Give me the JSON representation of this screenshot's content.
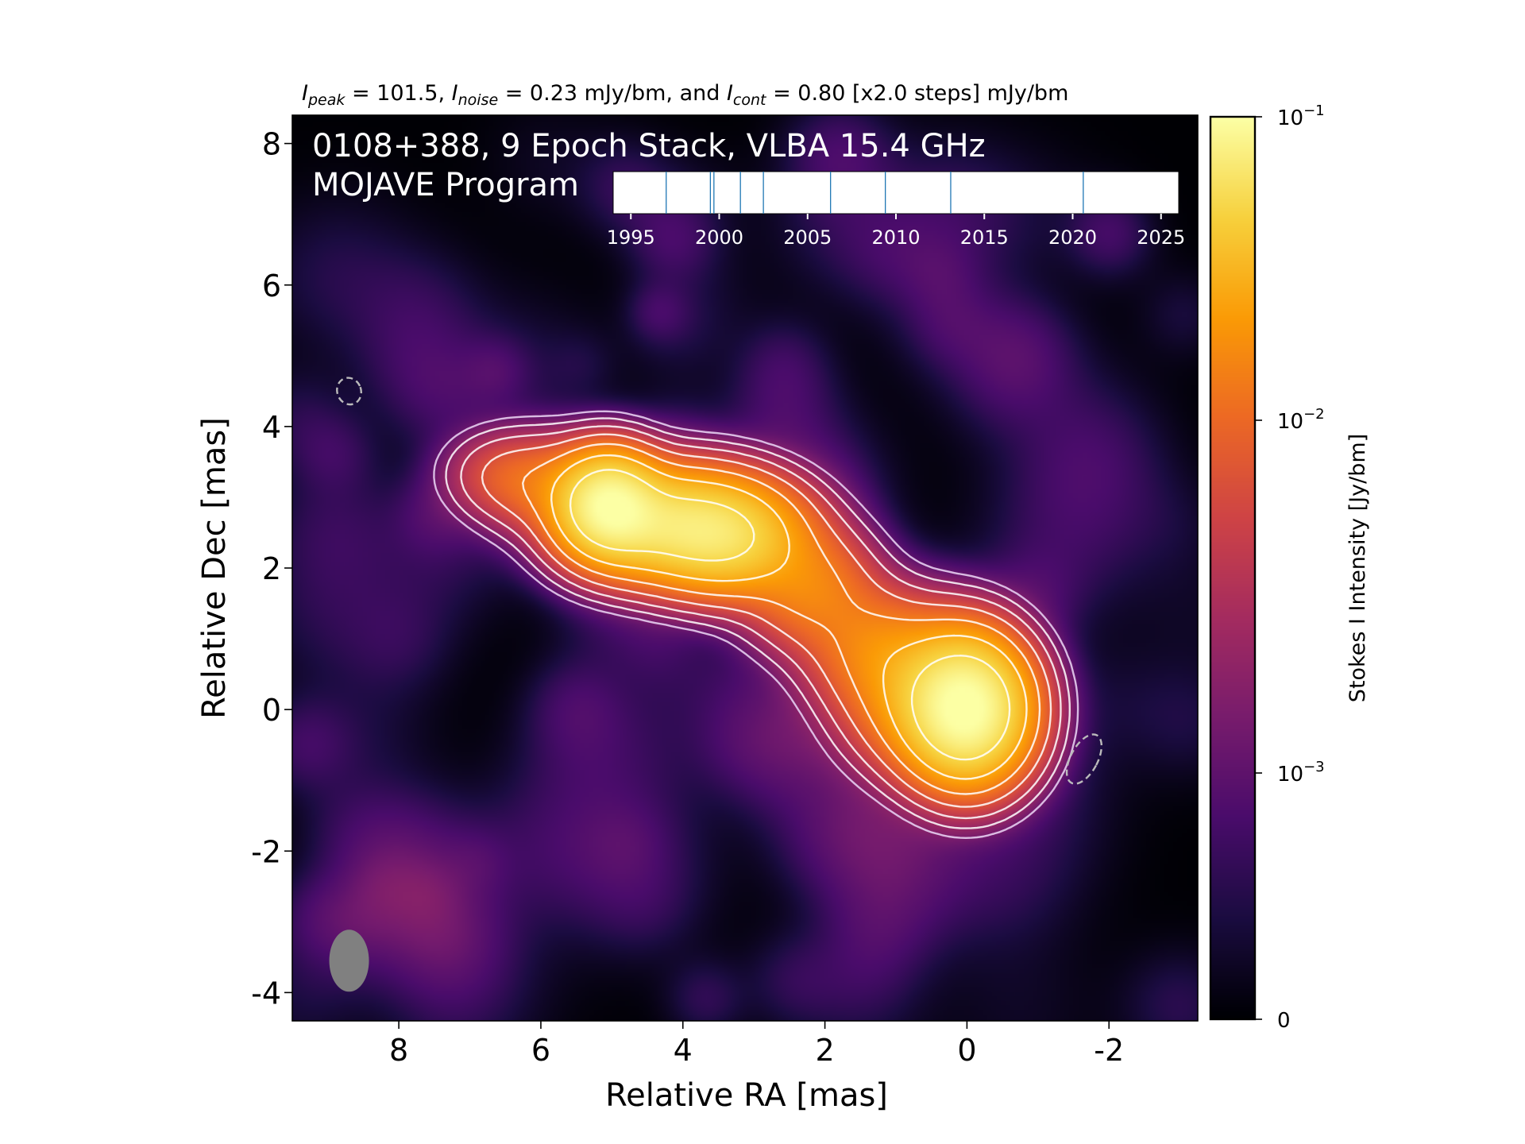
{
  "chart_data": {
    "type": "heatmap",
    "caption_parts": {
      "peak_sym": "I",
      "peak_sub": "peak",
      "peak_val": " = 101.5, ",
      "noise_sym": "I",
      "noise_sub": "noise",
      "noise_val": " = 0.23 mJy/bm, and ",
      "cont_sym": "I",
      "cont_sub": "cont",
      "cont_val": " = 0.80 [x2.0 steps] mJy/bm"
    },
    "title_line1": "0108+388, 9 Epoch Stack, VLBA 15.4 GHz",
    "title_line2": "MOJAVE Program",
    "xlabel": "Relative RA [mas]",
    "ylabel": "Relative Dec [mas]",
    "xlim": [
      9.5,
      -3.25
    ],
    "ylim": [
      -4.4,
      8.4
    ],
    "x_ticks": [
      {
        "value": 8,
        "label": "8"
      },
      {
        "value": 6,
        "label": "6"
      },
      {
        "value": 4,
        "label": "4"
      },
      {
        "value": 2,
        "label": "2"
      },
      {
        "value": 0,
        "label": "0"
      },
      {
        "value": -2,
        "label": "-2"
      }
    ],
    "y_ticks": [
      {
        "value": 8,
        "label": "8"
      },
      {
        "value": 6,
        "label": "6"
      },
      {
        "value": 4,
        "label": "4"
      },
      {
        "value": 2,
        "label": "2"
      },
      {
        "value": 0,
        "label": "0"
      },
      {
        "value": -2,
        "label": "-2"
      },
      {
        "value": -4,
        "label": "-4"
      }
    ],
    "components": [
      {
        "x": 0.0,
        "y": 0.0,
        "sx": 0.5,
        "sy": 0.58,
        "peak": 0.1015
      },
      {
        "x": 5.05,
        "y": 2.9,
        "sx": 0.42,
        "sy": 0.42,
        "peak": 0.085
      },
      {
        "x": 4.05,
        "y": 2.6,
        "sx": 0.8,
        "sy": 0.45,
        "peak": 0.06
      },
      {
        "x": 3.3,
        "y": 2.35,
        "sx": 0.6,
        "sy": 0.45,
        "peak": 0.03
      },
      {
        "x": 2.2,
        "y": 1.7,
        "sx": 0.55,
        "sy": 0.5,
        "peak": 0.014
      },
      {
        "x": 1.35,
        "y": 0.9,
        "sx": 0.55,
        "sy": 0.5,
        "peak": 0.011
      },
      {
        "x": 0.7,
        "y": 0.25,
        "sx": 0.6,
        "sy": 0.6,
        "peak": 0.02
      },
      {
        "x": 6.0,
        "y": 3.2,
        "sx": 0.55,
        "sy": 0.4,
        "peak": 0.01
      },
      {
        "x": 6.65,
        "y": 3.35,
        "sx": 0.45,
        "sy": 0.35,
        "peak": 0.0035
      }
    ],
    "contour_levels_mjy": [
      0.8,
      1.6,
      3.2,
      6.4,
      12.8,
      25.6,
      51.2
    ],
    "colormap": [
      "#000004",
      "#1b0c41",
      "#4a0c6b",
      "#781c6d",
      "#a52c60",
      "#cf4446",
      "#ed6925",
      "#fb9b06",
      "#f7d13d",
      "#fcffa4"
    ],
    "colorbar": {
      "label": "Stokes I Intensity [Jy/bm]",
      "tick_0": "0",
      "tick_m3_base": "10",
      "tick_m3_exp": "−3",
      "tick_m2_base": "10",
      "tick_m2_exp": "−2",
      "tick_m1_base": "10",
      "tick_m1_exp": "−1"
    },
    "beam": {
      "x": 8.7,
      "y": -3.55,
      "fill": "#808080"
    },
    "dashed_ellipses": [
      {
        "x": 8.7,
        "y": 4.5,
        "color": "#bbbbbb"
      },
      {
        "x": -1.65,
        "y": -0.7,
        "color": "#bbbbbb"
      }
    ],
    "epoch_timeline": {
      "xlim": [
        1994,
        2026
      ],
      "epochs": [
        1997.0,
        1999.5,
        1999.7,
        2001.2,
        2002.5,
        2006.3,
        2009.4,
        2013.1,
        2020.6
      ],
      "tick_values": [
        1995,
        2000,
        2005,
        2010,
        2015,
        2020,
        2025
      ],
      "tick_labels": [
        "1995",
        "2000",
        "2005",
        "2010",
        "2015",
        "2020",
        "2025"
      ],
      "line_color": "#1f77b4"
    }
  }
}
